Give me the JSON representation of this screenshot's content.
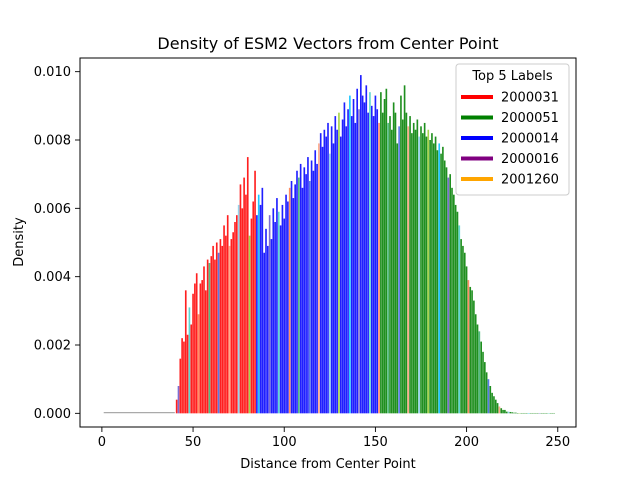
{
  "chart_data": {
    "type": "bar",
    "title": "Density of ESM2 Vectors from Center Point",
    "xlabel": "Distance from Center Point",
    "ylabel": "Density",
    "xlim": [
      -12,
      260
    ],
    "ylim": [
      -0.0004,
      0.0104
    ],
    "xticks": [
      {
        "value": 0,
        "label": "0"
      },
      {
        "value": 50,
        "label": "50"
      },
      {
        "value": 100,
        "label": "100"
      },
      {
        "value": 150,
        "label": "150"
      },
      {
        "value": 200,
        "label": "200"
      },
      {
        "value": 250,
        "label": "250"
      }
    ],
    "yticks": [
      {
        "value": 0,
        "label": "0.000"
      },
      {
        "value": 0.002,
        "label": "0.002"
      },
      {
        "value": 0.004,
        "label": "0.004"
      },
      {
        "value": 0.006,
        "label": "0.006"
      },
      {
        "value": 0.008,
        "label": "0.008"
      },
      {
        "value": 0.01,
        "label": "0.010"
      }
    ],
    "legend": {
      "title": "Top 5 Labels",
      "placement": "upper right",
      "entries": [
        {
          "label": "2000031",
          "color": "#ff0000"
        },
        {
          "label": "2000051",
          "color": "#008000"
        },
        {
          "label": "2000014",
          "color": "#0000ff"
        },
        {
          "label": "2000016",
          "color": "#800080"
        },
        {
          "label": "2001260",
          "color": "#ffa500"
        }
      ]
    },
    "bar_width": 0.9,
    "other_colors": [
      "#6a5acd",
      "#48d1cc",
      "#ff7f50",
      "#3cb371",
      "#4169e1",
      "#ffa07a",
      "#87ceeb",
      "#9acd32",
      "#00bfff"
    ],
    "flat_segment": {
      "x_start": 1,
      "x_end": 40,
      "y": 2e-05,
      "color": "#aaaaaa"
    },
    "series": [
      {
        "name": "2000031",
        "color": "#ff0000",
        "x_start": 41,
        "values": [
          0.0004,
          0.0008,
          0.0016,
          0.0022,
          0.0021,
          0.0036,
          0.0023,
          0.0031,
          0.0026,
          0.0035,
          0.0038,
          0.0041,
          0.0029,
          0.0038,
          0.0039,
          0.0043,
          0.0036,
          0.0045,
          0.0044,
          0.0046,
          0.0049,
          0.0045,
          0.005,
          0.0047,
          0.0051,
          0.0049,
          0.0055,
          0.0052,
          0.0058,
          0.0049,
          0.0051,
          0.0053,
          0.0056,
          0.0058,
          0.0061,
          0.0067,
          0.006,
          0.0069,
          0.0064,
          0.0075,
          0.0052,
          0.0057,
          0.0062,
          0.0071
        ]
      },
      {
        "name": "2000014",
        "color": "#0000ff",
        "x_start": 85,
        "values": [
          0.0058,
          0.0064,
          0.0061,
          0.0066,
          0.0047,
          0.0054,
          0.0049,
          0.0058,
          0.0051,
          0.006,
          0.0056,
          0.0063,
          0.0059,
          0.0055,
          0.0061,
          0.0057,
          0.0064,
          0.0062,
          0.0066,
          0.0068,
          0.0063,
          0.0067,
          0.0071,
          0.0069,
          0.0073,
          0.0066,
          0.0072,
          0.007,
          0.0075,
          0.0068,
          0.0074,
          0.0071,
          0.0077,
          0.0073,
          0.0079,
          0.0082,
          0.0078,
          0.0083,
          0.0081,
          0.0085,
          0.0076,
          0.0084,
          0.0079,
          0.0087,
          0.0083,
          0.0088,
          0.0081,
          0.0086,
          0.0091,
          0.0084,
          0.0089,
          0.0093,
          0.0087,
          0.0092,
          0.0085,
          0.0095,
          0.0089,
          0.0099,
          0.0093,
          0.0091,
          0.0096,
          0.0088,
          0.0094,
          0.009,
          0.0087,
          0.0093,
          0.0089,
          0.0085
        ]
      },
      {
        "name": "2000051",
        "color": "#008000",
        "x_start": 153,
        "values": [
          0.0094,
          0.0088,
          0.0092,
          0.0095,
          0.0085,
          0.0087,
          0.0083,
          0.0091,
          0.0088,
          0.0079,
          0.0084,
          0.0093,
          0.0086,
          0.0096,
          0.0088,
          0.0084,
          0.0087,
          0.0082,
          0.0085,
          0.0083,
          0.0086,
          0.0081,
          0.0084,
          0.0082,
          0.0085,
          0.0081,
          0.0083,
          0.008,
          0.0082,
          0.0079,
          0.0081,
          0.0077,
          0.0079,
          0.0076,
          0.0078,
          0.0074,
          0.0072,
          0.0069,
          0.007,
          0.0066,
          0.0064,
          0.0061,
          0.0059,
          0.0055,
          0.0051,
          0.0049,
          0.0047,
          0.0043,
          0.0039,
          0.0037,
          0.0036,
          0.0033,
          0.0029,
          0.0026,
          0.0024,
          0.0021,
          0.0018,
          0.0015,
          0.0012,
          0.001,
          0.0008,
          0.0006,
          0.0005,
          0.0004,
          0.0003,
          0.0002,
          0.00015,
          0.0001,
          0.0001,
          5e-05,
          5e-05,
          4e-05,
          3e-05,
          2e-05,
          2e-05,
          1e-05,
          1e-05,
          1e-05,
          1e-05,
          1e-05,
          1e-05,
          1e-05,
          1e-05,
          1e-05,
          1e-05,
          1e-05,
          1e-05,
          1e-05,
          1e-05,
          1e-05,
          1e-05,
          1e-05,
          1e-05,
          1e-05,
          1e-05,
          1e-05
        ]
      }
    ]
  }
}
